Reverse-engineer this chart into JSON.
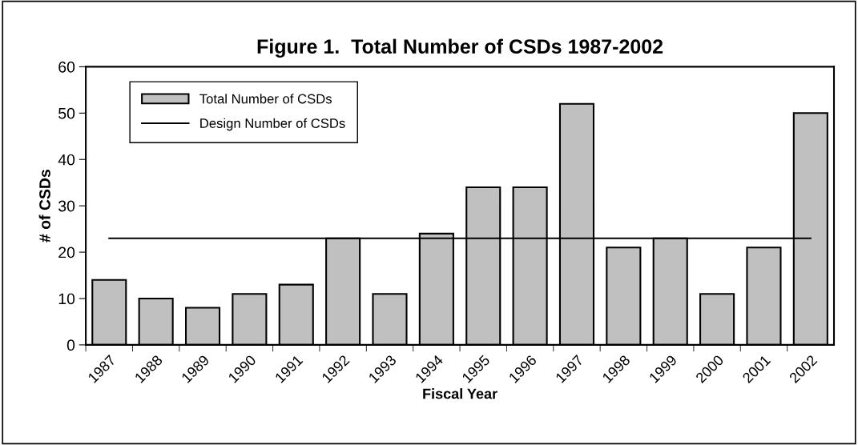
{
  "chart_data": {
    "type": "bar",
    "title": "Figure 1.  Total Number of CSDs 1987-2002",
    "xlabel": "Fiscal Year",
    "ylabel": "# of CSDs",
    "categories": [
      "1987",
      "1988",
      "1989",
      "1990",
      "1991",
      "1992",
      "1993",
      "1994",
      "1995",
      "1996",
      "1997",
      "1998",
      "1999",
      "2000",
      "2001",
      "2002"
    ],
    "series": [
      {
        "name": "Total Number of CSDs",
        "color": "#c0c0c0",
        "values": [
          14,
          10,
          8,
          11,
          13,
          23,
          11,
          24,
          34,
          34,
          52,
          21,
          23,
          11,
          21,
          50
        ]
      },
      {
        "name": "Design Number of CSDs",
        "type": "line",
        "color": "#000000",
        "values": [
          23,
          23,
          23,
          23,
          23,
          23,
          23,
          23,
          23,
          23,
          23,
          23,
          23,
          23,
          23,
          23
        ]
      }
    ],
    "ylim": [
      0,
      60
    ],
    "yticks": [
      0,
      10,
      20,
      30,
      40,
      50,
      60
    ],
    "grid": false,
    "legend": "top left",
    "marker": "none",
    "line_style": "solid"
  }
}
